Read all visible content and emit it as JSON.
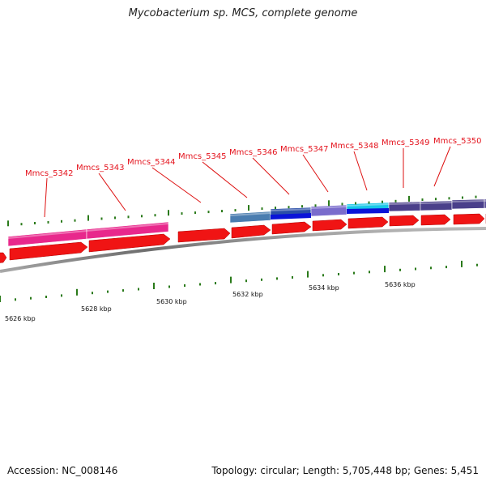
{
  "title": "Mycobacterium sp. MCS, complete genome",
  "footer": {
    "accession": "Accession: NC_008146",
    "summary": "Topology: circular; Length: 5,705,448 bp; Genes: 5,451"
  },
  "colors": {
    "gene_arrow": "#f01414",
    "backbone": "#8a8a8a",
    "tick": "#2a7a1a",
    "label": "#e4141e",
    "leader": "#dd1111"
  },
  "gene_labels": [
    "Mmcs_5342",
    "Mmcs_5343",
    "Mmcs_5344",
    "Mmcs_5345",
    "Mmcs_5346",
    "Mmcs_5347",
    "Mmcs_5348",
    "Mmcs_5349",
    "Mmcs_5350"
  ],
  "kbp_labels": [
    "5626 kbp",
    "5628 kbp",
    "5630 kbp",
    "5632 kbp",
    "5634 kbp",
    "5636 kbp"
  ],
  "cog_bar_colors": [
    "#e8288c",
    "#e8288c",
    "#4a7db0",
    "#2b4fa8",
    "#7a6ccc",
    "#18c8e8",
    "#4a3f8a",
    "#4a3f8a",
    "#4a3f8a",
    "#5a4f9a"
  ]
}
